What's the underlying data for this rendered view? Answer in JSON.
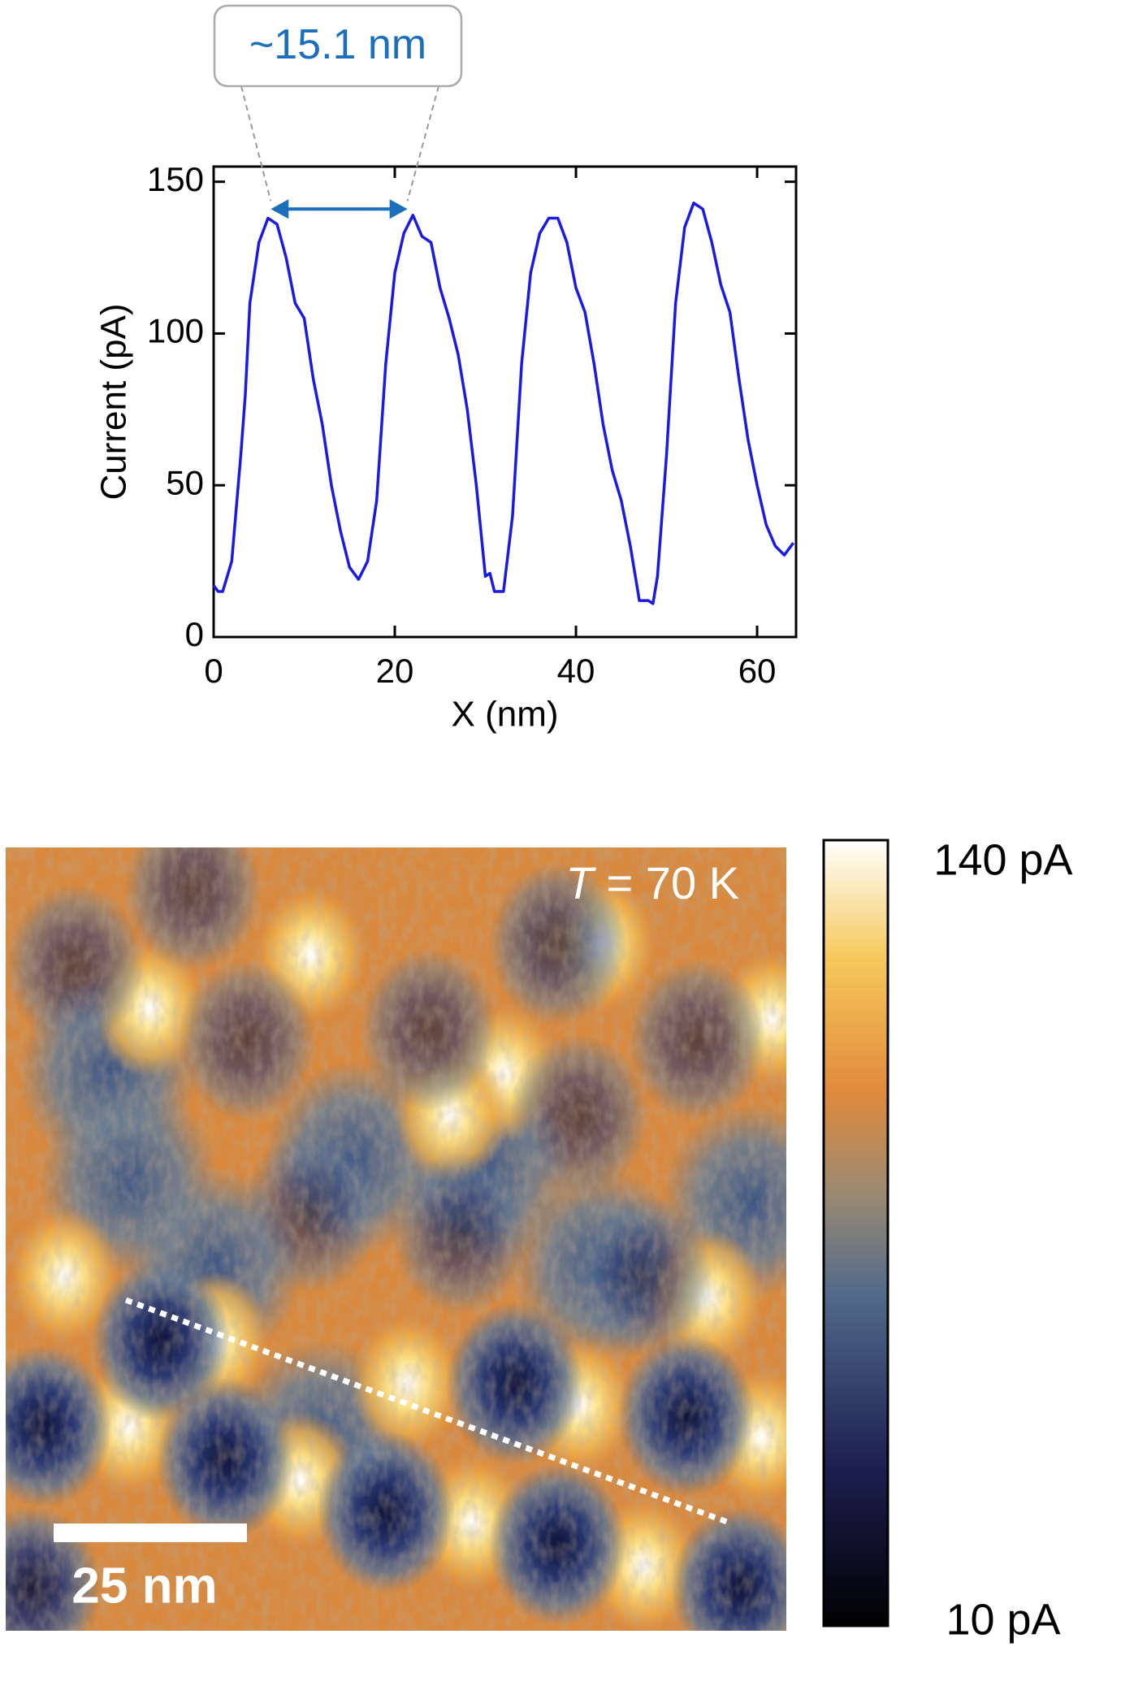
{
  "chart_data": {
    "type": "line",
    "xlabel": "X (nm)",
    "ylabel": "Current (pA)",
    "x": [
      0,
      0.5,
      1,
      2,
      3,
      3.5,
      4,
      5,
      6,
      7,
      8,
      9,
      10,
      11,
      12,
      13,
      14,
      15,
      16,
      17,
      18,
      19,
      20,
      21,
      22,
      23,
      24,
      25,
      26,
      27,
      28,
      29,
      30,
      30.5,
      31,
      32,
      33,
      34,
      35,
      36,
      37,
      38,
      39,
      40,
      41,
      42,
      43,
      44,
      45,
      46,
      47,
      48,
      48.5,
      49,
      50,
      51,
      52,
      53,
      54,
      55,
      56,
      57,
      58,
      59,
      60,
      61,
      62,
      63,
      64
    ],
    "series": [
      {
        "color": "#1a1ae6",
        "values": [
          17,
          15,
          15,
          25,
          60,
          80,
          110,
          130,
          138,
          136,
          125,
          110,
          105,
          85,
          70,
          50,
          35,
          23,
          19,
          25,
          45,
          90,
          120,
          133,
          139,
          132,
          130,
          115,
          105,
          93,
          75,
          50,
          20,
          21,
          15,
          15,
          40,
          90,
          120,
          133,
          138,
          138,
          130,
          115,
          107,
          90,
          70,
          55,
          45,
          30,
          12,
          12,
          11,
          20,
          60,
          110,
          135,
          143,
          141,
          130,
          116,
          107,
          85,
          65,
          50,
          37,
          30,
          27,
          31
        ]
      }
    ],
    "xlim": [
      0,
      64.3
    ],
    "ylim": [
      0,
      155
    ],
    "xticks": [
      0,
      20,
      40,
      60
    ],
    "yticks": [
      0,
      50,
      100,
      150
    ],
    "annotation": {
      "text": "~15.1 nm",
      "x": [
        6.3,
        21.4
      ],
      "y": 141,
      "color": "#1b6fbd"
    }
  },
  "image": {
    "temperature_label": [
      "T",
      "= 70 K"
    ],
    "scale_bar": "25 nm",
    "colorbar": {
      "max_label": "140 pA",
      "min_label": "10 pA"
    }
  }
}
